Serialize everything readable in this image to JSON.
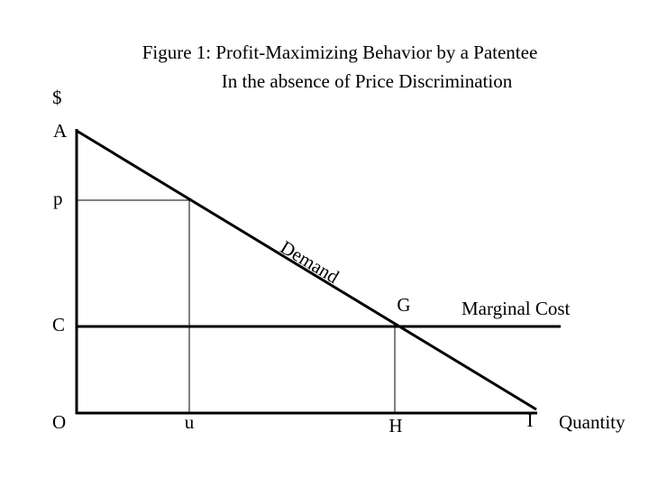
{
  "title": {
    "line1": "Figure 1:  Profit-Maximizing Behavior by a Patentee",
    "line2": "In the absence of Price Discrimination"
  },
  "labels": {
    "vertical_axis": "$",
    "intercept": "A",
    "price": "p",
    "cost": "C",
    "origin": "O",
    "output": "u",
    "intersection": "G",
    "intersection_quantity": "H",
    "demand_end": "I",
    "horizontal_axis": "Quantity",
    "demand": "Demand",
    "marginal_cost": "Marginal Cost"
  }
}
